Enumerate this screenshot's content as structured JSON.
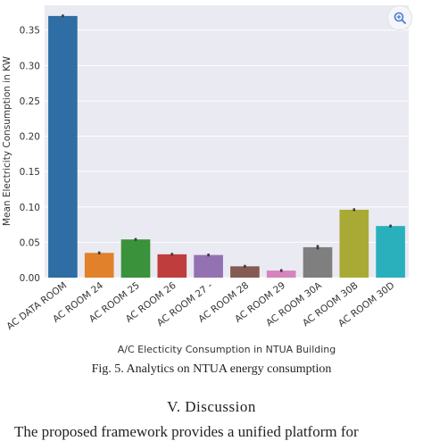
{
  "chart_data": {
    "type": "bar",
    "xlabel": "A/C Electicity Consumption in NTUA Building",
    "ylabel": "Mean Electricity Consumption in KW",
    "ylim": [
      0,
      0.385
    ],
    "yticks": [
      0.0,
      0.05,
      0.1,
      0.15,
      0.2,
      0.25,
      0.3,
      0.35
    ],
    "ytick_labels": [
      "0.00",
      "0.05",
      "0.10",
      "0.15",
      "0.20",
      "0.25",
      "0.30",
      "0.35"
    ],
    "grid": true,
    "categories": [
      "AC DATA ROOM",
      "AC ROOM 24",
      "AC ROOM 25",
      "AC ROOM 26",
      "AC ROOM 27 -",
      "AC ROOM 28",
      "AC ROOM 29",
      "AC ROOM 30A",
      "AC ROOM 30B",
      "AC ROOM 30D"
    ],
    "values": [
      0.37,
      0.035,
      0.054,
      0.033,
      0.032,
      0.016,
      0.01,
      0.043,
      0.096,
      0.073
    ],
    "error": [
      0.002,
      0.002,
      0.002,
      0.002,
      0.002,
      0.002,
      0.002,
      0.003,
      0.002,
      0.002
    ],
    "colors": [
      "#2e6ea4",
      "#e1812c",
      "#3a923a",
      "#c03d3e",
      "#9372b2",
      "#845b53",
      "#d684bd",
      "#7f7f7f",
      "#a9aa35",
      "#2ab0bd"
    ]
  },
  "caption": "Fig. 5. Analytics on NTUA energy consumption",
  "section_heading": "V.   Discussion",
  "body_text": "The proposed framework provides a unified platform for",
  "zoom_icon": "zoom-in-icon"
}
